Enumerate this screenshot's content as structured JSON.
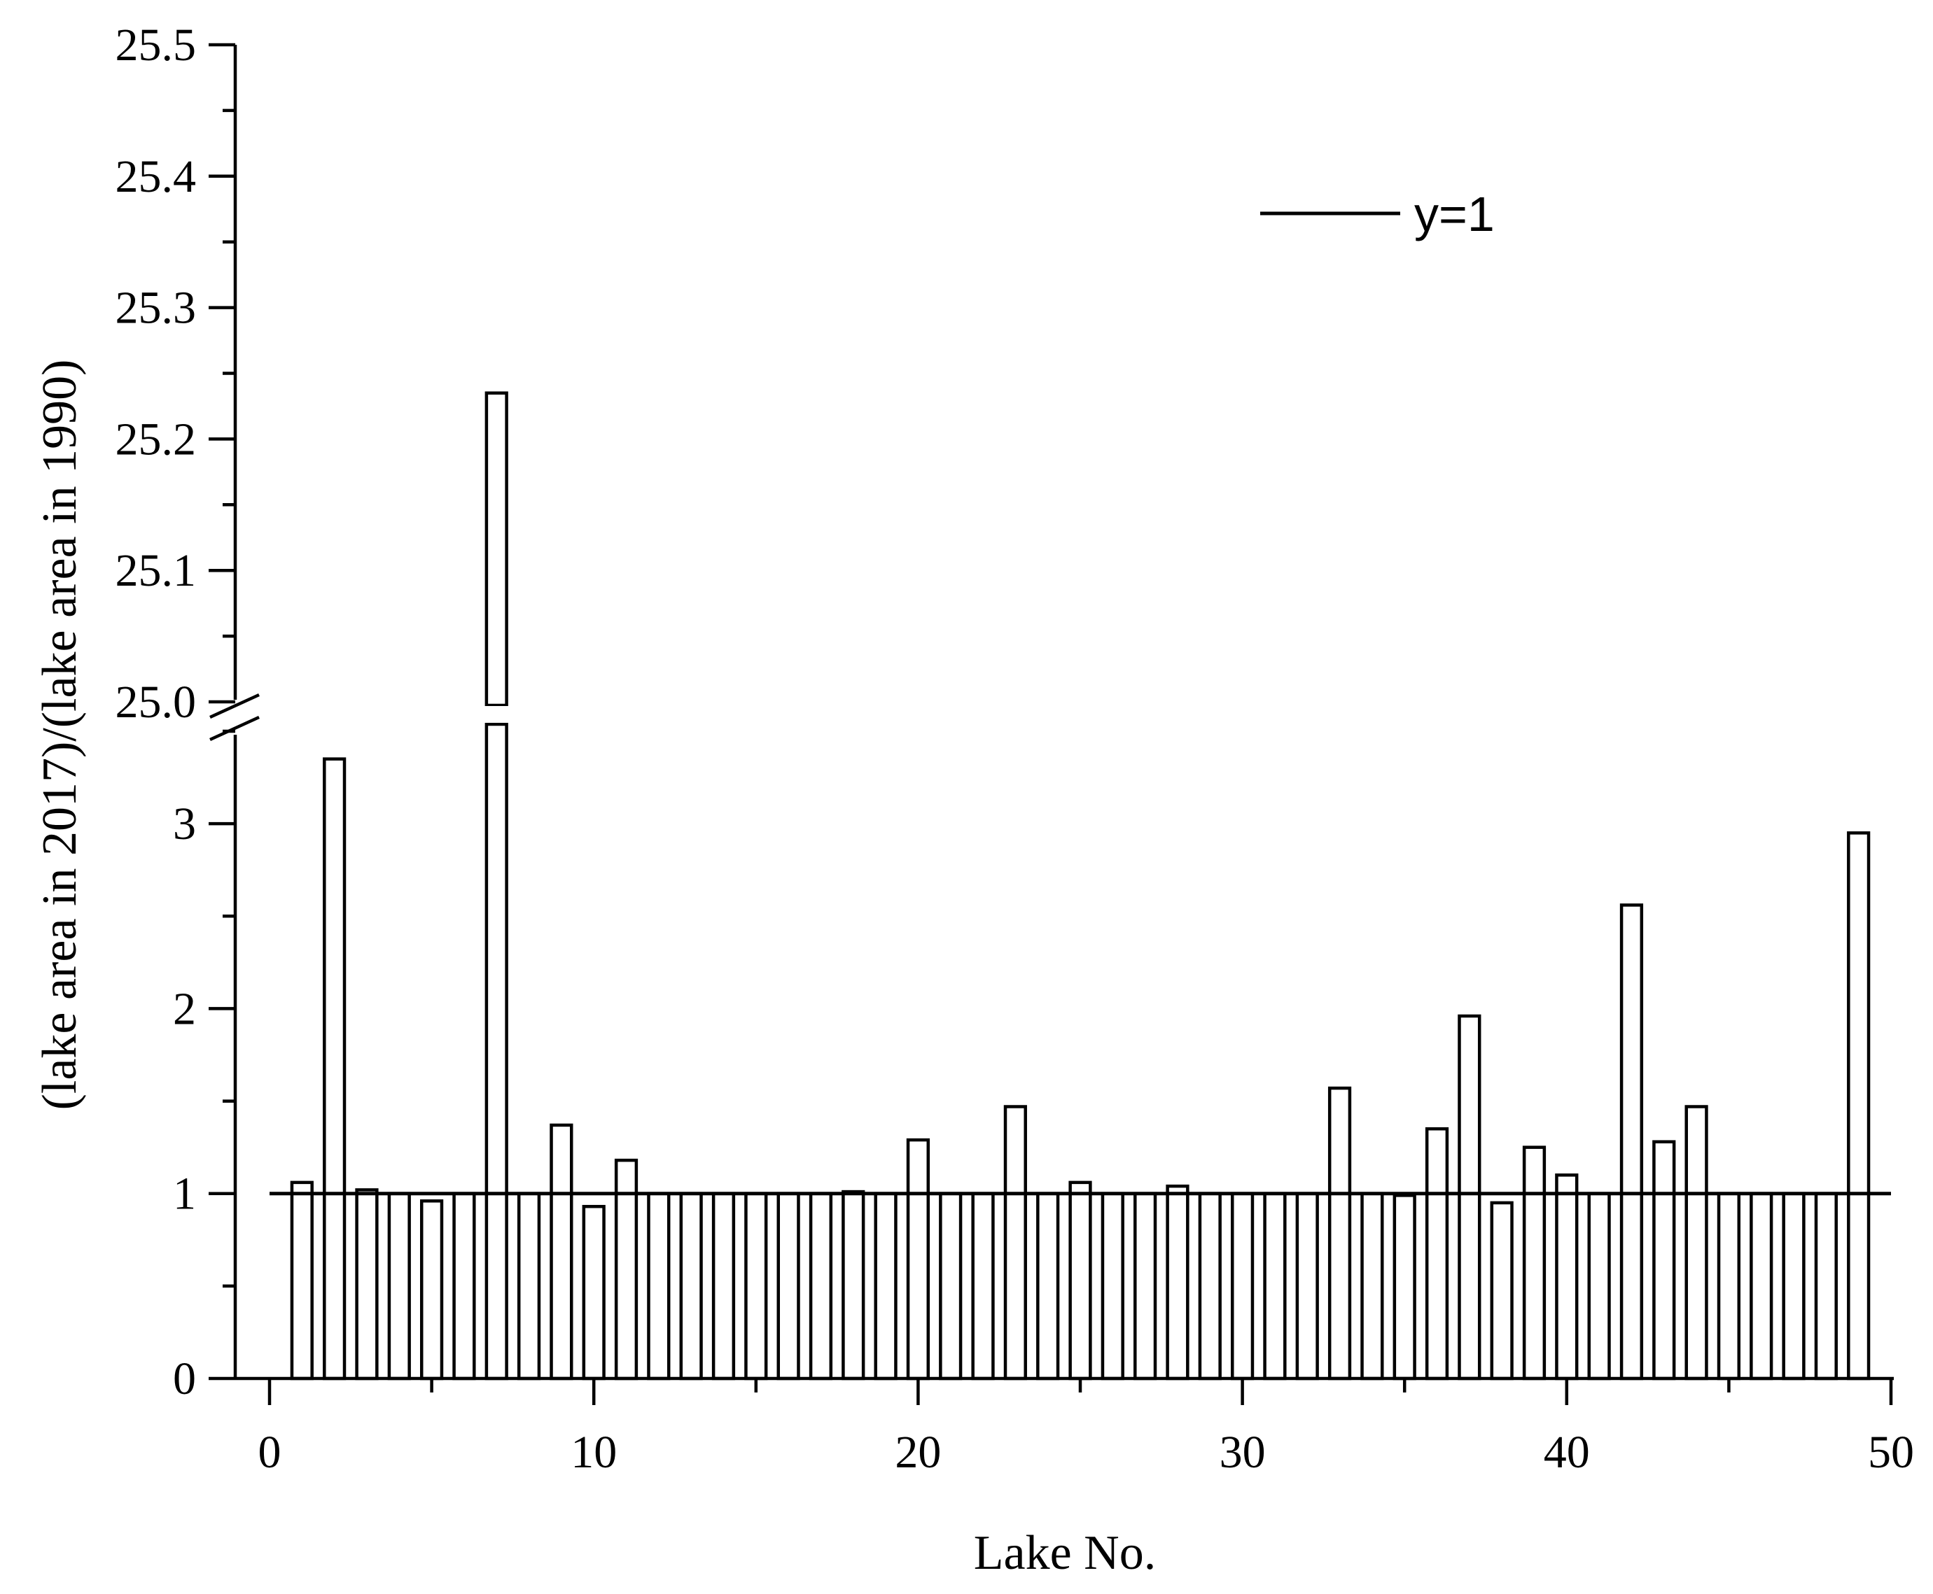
{
  "chart_data": {
    "type": "bar",
    "xlabel": "Lake No.",
    "ylabel": "(lake area in 2017)/(lake area in 1990)",
    "xlim": [
      -1.5,
      50
    ],
    "x_ticks": [
      "0",
      "10",
      "20",
      "30",
      "40",
      "50"
    ],
    "x_tick_values": [
      0,
      10,
      20,
      30,
      40,
      50
    ],
    "y_axis_break": true,
    "y_lower": {
      "range": [
        0,
        3.5
      ],
      "ticks": [
        "0",
        "1",
        "2",
        "3"
      ],
      "tick_values": [
        0,
        1,
        2,
        3
      ]
    },
    "y_upper": {
      "range": [
        25.0,
        25.5
      ],
      "ticks": [
        "25.0",
        "25.1",
        "25.2",
        "25.3",
        "25.4",
        "25.5"
      ],
      "tick_values": [
        25.0,
        25.1,
        25.2,
        25.3,
        25.4,
        25.5
      ]
    },
    "categories": [
      1,
      2,
      3,
      4,
      5,
      6,
      7,
      8,
      9,
      10,
      11,
      12,
      13,
      14,
      15,
      16,
      17,
      18,
      19,
      20,
      21,
      22,
      23,
      24,
      25,
      26,
      27,
      28,
      29,
      30,
      31,
      32,
      33,
      34,
      35,
      36,
      37,
      38,
      39,
      40,
      41,
      42,
      43,
      44,
      45,
      46,
      47,
      48,
      49
    ],
    "values": [
      1.06,
      3.35,
      1.02,
      1.0,
      0.96,
      1.0,
      25.235,
      1.0,
      1.37,
      0.93,
      1.18,
      1.0,
      1.0,
      1.0,
      1.0,
      1.0,
      1.0,
      1.01,
      1.0,
      1.29,
      1.0,
      1.0,
      1.47,
      1.0,
      1.06,
      1.0,
      1.0,
      1.04,
      1.0,
      1.0,
      1.0,
      1.0,
      1.57,
      1.0,
      0.99,
      1.35,
      1.96,
      0.95,
      1.25,
      1.1,
      1.0,
      2.56,
      1.28,
      1.47,
      1.0,
      1.0,
      1.0,
      1.0,
      2.95
    ],
    "reference_line": {
      "y": 1,
      "label": "y=1"
    },
    "legend": {
      "entries": [
        "y=1"
      ],
      "placement": "top-right"
    },
    "grid": false
  }
}
